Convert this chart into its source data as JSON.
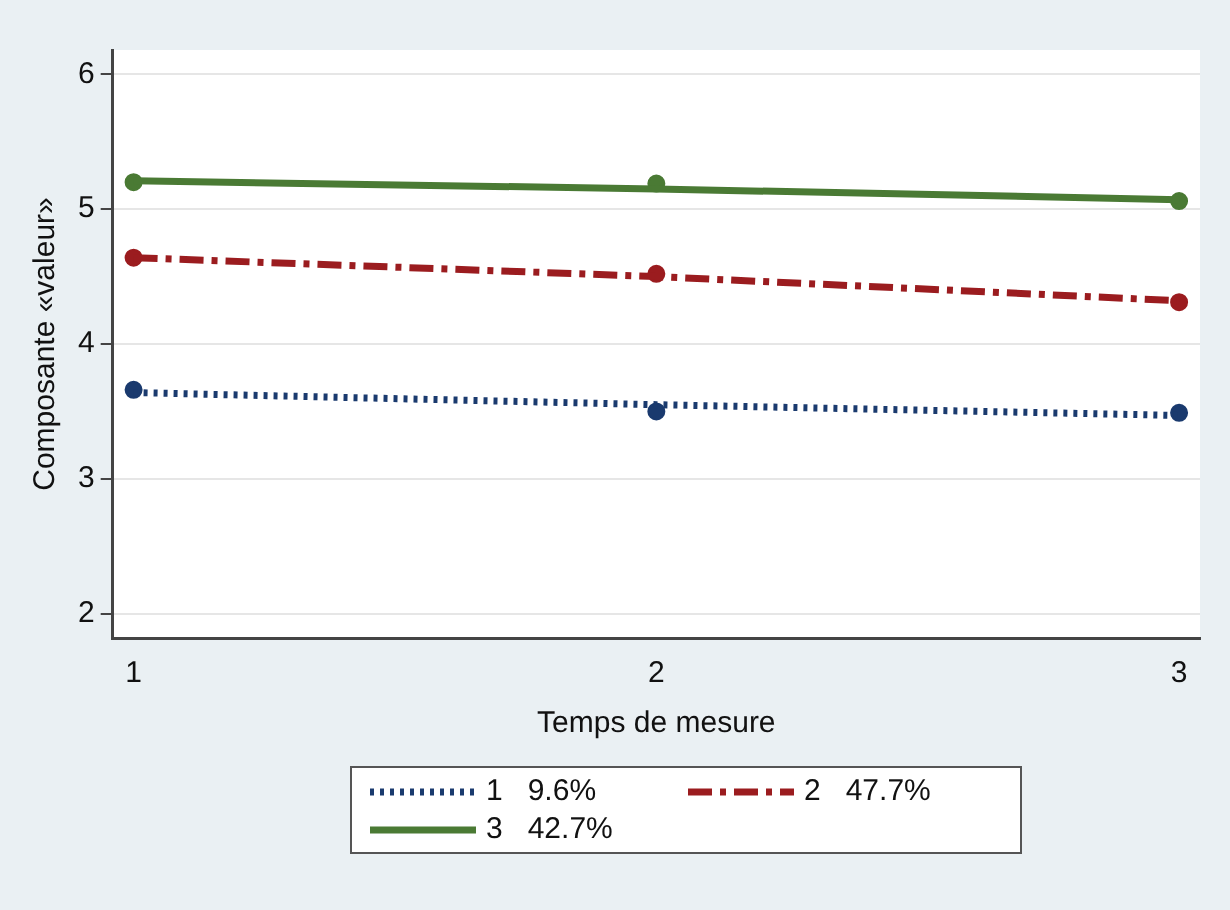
{
  "chart_data": {
    "type": "line",
    "xlabel": "Temps de mesure",
    "ylabel": "Composante «valeur»",
    "x": [
      1,
      2,
      3
    ],
    "xlim": [
      0.96,
      3.04
    ],
    "xticks": [
      1,
      2,
      3
    ],
    "ylim": [
      1.82,
      6.18
    ],
    "yticks": [
      2,
      3,
      4,
      5,
      6
    ],
    "grid": "y",
    "legend": "bottom",
    "series": [
      {
        "name": "1   9.6%",
        "line_style": "dotted",
        "marker": "none",
        "color": "#1a3a6e",
        "values": [
          3.64,
          3.55,
          3.47
        ]
      },
      {
        "name": "2   47.7%",
        "line_style": "dashed",
        "marker": "none",
        "color": "#9b1c1f",
        "values": [
          4.64,
          4.5,
          4.32
        ]
      },
      {
        "name": "3   42.7%",
        "line_style": "solid",
        "marker": "none",
        "color": "#4a7a34",
        "values": [
          5.21,
          5.15,
          5.07
        ]
      },
      {
        "type": "scatter",
        "marker": "circle",
        "color": "#1a3a6e",
        "values": [
          3.66,
          3.5,
          3.49
        ]
      },
      {
        "type": "scatter",
        "marker": "circle",
        "color": "#9b1c1f",
        "values": [
          4.64,
          4.52,
          4.31
        ]
      },
      {
        "type": "scatter",
        "marker": "circle",
        "color": "#4a7a34",
        "values": [
          5.2,
          5.19,
          5.06
        ]
      }
    ]
  }
}
